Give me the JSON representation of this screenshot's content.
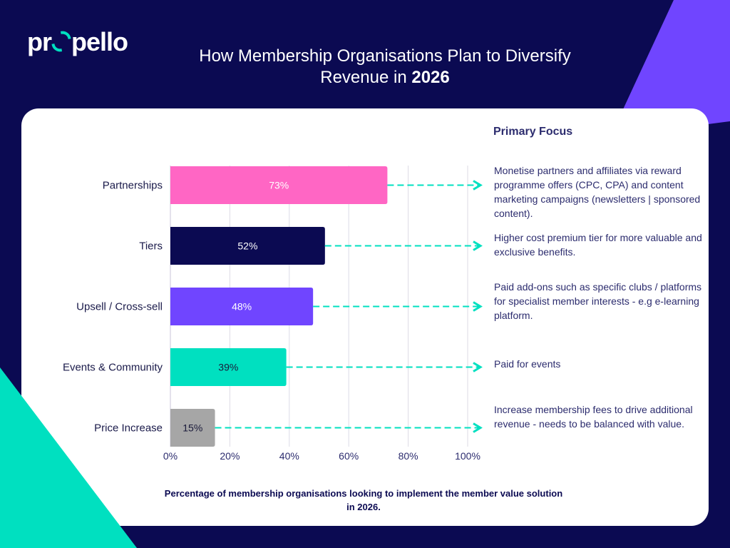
{
  "brand": {
    "logo_text": "propello"
  },
  "title": {
    "main": "How Membership Organisations Plan to Diversify Revenue in",
    "year": "2026"
  },
  "colors": {
    "background": "#0b0a52",
    "accent_purple": "#7045ff",
    "accent_teal": "#00e0c0",
    "arrow": "#00e0c0"
  },
  "primary_focus": {
    "heading": "Primary Focus",
    "notes": [
      "Monetise partners and affiliates via reward programme offers (CPC, CPA) and content marketing campaigns (newsletters | sponsored content).",
      "Higher cost premium tier for more valuable and exclusive benefits.",
      "Paid add-ons such as specific clubs / platforms for specialist member interests - e.g e-learning platform.",
      "Paid for events",
      "Increase membership fees to drive additional revenue - needs to be balanced with value."
    ]
  },
  "chart_data": {
    "type": "bar",
    "orientation": "horizontal",
    "categories": [
      "Partnerships",
      "Tiers",
      "Upsell / Cross-sell",
      "Events & Community",
      "Price Increase"
    ],
    "values": [
      73,
      52,
      48,
      39,
      15
    ],
    "data_labels": [
      "73%",
      "52%",
      "48%",
      "39%",
      "15%"
    ],
    "bar_colors": [
      "#ff66c4",
      "#0b0a52",
      "#7045ff",
      "#00e0c0",
      "#a6a6a6"
    ],
    "label_colors": [
      "#ffffff",
      "#ffffff",
      "#ffffff",
      "#1a1a3a",
      "#1a1a3a"
    ],
    "xlim": [
      0,
      100
    ],
    "xticks": [
      "0%",
      "20%",
      "40%",
      "60%",
      "80%",
      "100%"
    ],
    "grid": true,
    "xlabel": "Percentage of membership organisations looking to implement the member value solution in 2026."
  }
}
